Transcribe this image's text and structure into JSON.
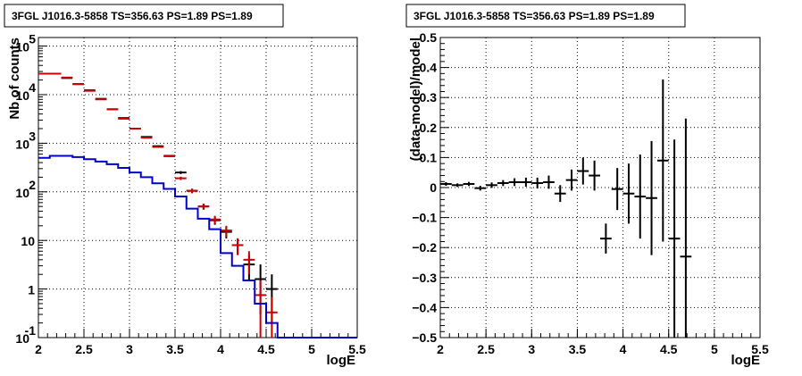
{
  "colors": {
    "data": "#000000",
    "model": "#cc0000",
    "source": "#0000cc",
    "grid": "#000000"
  },
  "chart_data": [
    {
      "type": "line",
      "title": "3FGL J1016.3-5858 TS=356.63 PS=1.89 PS=1.89",
      "xlabel": "logE",
      "ylabel": "Nb of counts",
      "xlim": [
        2,
        5.5
      ],
      "ylim": [
        0.1,
        150000
      ],
      "yscale": "log",
      "grid": true,
      "x_ticks": [
        "2",
        "2.5",
        "3",
        "3.5",
        "4",
        "4.5",
        "5",
        "5.5"
      ],
      "y_ticks": [
        {
          "v": 0.1,
          "base": "10",
          "exp": "-1"
        },
        {
          "v": 1,
          "base": "1",
          "exp": ""
        },
        {
          "v": 10,
          "base": "10",
          "exp": ""
        },
        {
          "v": 100,
          "base": "10",
          "exp": "2"
        },
        {
          "v": 1000,
          "base": "10",
          "exp": "3"
        },
        {
          "v": 10000,
          "base": "10",
          "exp": "4"
        },
        {
          "v": 100000,
          "base": "10",
          "exp": "5"
        }
      ],
      "series": [
        {
          "role": "data",
          "color": "#000000",
          "points": [
            {
              "x": 2.0625,
              "y": 27000
            },
            {
              "x": 2.1875,
              "y": 27000
            },
            {
              "x": 2.3125,
              "y": 22000
            },
            {
              "x": 2.4375,
              "y": 16500
            },
            {
              "x": 2.5625,
              "y": 12300
            },
            {
              "x": 2.6875,
              "y": 8200
            },
            {
              "x": 2.8125,
              "y": 5000
            },
            {
              "x": 2.9375,
              "y": 3300
            },
            {
              "x": 3.0625,
              "y": 2000
            },
            {
              "x": 3.1875,
              "y": 1350
            },
            {
              "x": 3.3125,
              "y": 870
            },
            {
              "x": 3.4375,
              "y": 550
            },
            {
              "x": 3.5625,
              "y": 250
            },
            {
              "x": 3.6875,
              "y": 105
            },
            {
              "x": 3.8125,
              "y": 50
            },
            {
              "x": 3.9375,
              "y": 26
            },
            {
              "x": 4.0625,
              "y": 15
            },
            {
              "x": 4.1875,
              "y": 8
            },
            {
              "x": 4.3125,
              "y": 3.2
            },
            {
              "x": 4.4375,
              "y": 1.6
            },
            {
              "x": 4.5625,
              "y": 1.0
            }
          ],
          "err_low": [
            300,
            300,
            250,
            200,
            150,
            100,
            80,
            60,
            45,
            35,
            30,
            24,
            17,
            11,
            7,
            5,
            4,
            3,
            1.7,
            1.3,
            0.8
          ],
          "err_high": [
            300,
            300,
            250,
            200,
            150,
            100,
            80,
            60,
            45,
            35,
            30,
            24,
            17,
            11,
            7,
            5,
            4,
            3,
            1.8,
            1.6,
            1.0
          ]
        },
        {
          "role": "model",
          "color": "#cc0000",
          "points": [
            {
              "x": 2.0625,
              "y": 27000
            },
            {
              "x": 2.1875,
              "y": 27000
            },
            {
              "x": 2.3125,
              "y": 22500
            },
            {
              "x": 2.4375,
              "y": 16500
            },
            {
              "x": 2.5625,
              "y": 12000
            },
            {
              "x": 2.6875,
              "y": 8000
            },
            {
              "x": 2.8125,
              "y": 5000
            },
            {
              "x": 2.9375,
              "y": 3200
            },
            {
              "x": 3.0625,
              "y": 2000
            },
            {
              "x": 3.1875,
              "y": 1300
            },
            {
              "x": 3.3125,
              "y": 840
            },
            {
              "x": 3.4375,
              "y": 540
            },
            {
              "x": 3.5625,
              "y": 190
            },
            {
              "x": 3.6875,
              "y": 105
            },
            {
              "x": 3.8125,
              "y": 50
            },
            {
              "x": 3.9375,
              "y": 27
            },
            {
              "x": 4.0625,
              "y": 16
            },
            {
              "x": 4.1875,
              "y": 8
            },
            {
              "x": 4.3125,
              "y": 4
            },
            {
              "x": 4.4375,
              "y": 0.75
            },
            {
              "x": 4.5625,
              "y": 0.33
            }
          ],
          "err_low": [
            400,
            400,
            350,
            280,
            200,
            140,
            100,
            70,
            50,
            40,
            32,
            25,
            15,
            11,
            7,
            5,
            4,
            3,
            2,
            0.65,
            0.23
          ],
          "err_high": [
            400,
            400,
            350,
            280,
            200,
            140,
            100,
            70,
            50,
            40,
            32,
            25,
            15,
            11,
            7,
            5,
            4,
            3,
            2,
            0.75,
            0.35
          ]
        },
        {
          "role": "source",
          "color": "#0000cc",
          "drawstyle": "steps",
          "bin_width": 0.125,
          "x_centers": [
            2.0625,
            2.1875,
            2.3125,
            2.4375,
            2.5625,
            2.6875,
            2.8125,
            2.9375,
            3.0625,
            3.1875,
            3.3125,
            3.4375,
            3.5625,
            3.6875,
            3.8125,
            3.9375,
            4.0625,
            4.1875,
            4.3125,
            4.4375,
            4.5625,
            4.6875,
            4.8125,
            4.9375,
            5.0625,
            5.1875,
            5.3125,
            5.4375
          ],
          "values": [
            500,
            550,
            550,
            520,
            470,
            420,
            370,
            310,
            250,
            200,
            150,
            115,
            80,
            45,
            28,
            17,
            5.5,
            3.0,
            1.5,
            0.5,
            0.2,
            0.1,
            0.1,
            0.1,
            0.1,
            0.1,
            0.1,
            0.1
          ]
        }
      ]
    },
    {
      "type": "scatter",
      "title": "3FGL J1016.3-5858 TS=356.63 PS=1.89 PS=1.89",
      "xlabel": "logE",
      "ylabel": "(data-model)/model",
      "xlim": [
        2,
        5.5
      ],
      "ylim": [
        -0.5,
        0.5
      ],
      "grid": true,
      "x_ticks": [
        "2",
        "2.5",
        "3",
        "3.5",
        "4",
        "4.5",
        "5",
        "5.5"
      ],
      "y_ticks": [
        "0.5",
        "0.4",
        "0.3",
        "0.2",
        "0.1",
        "0",
        "−0.1",
        "−0.2",
        "−0.3",
        "−0.4",
        "−0.5"
      ],
      "series": [
        {
          "role": "residual",
          "color": "#000000",
          "points": [
            {
              "x": 2.0625,
              "y": 0.012,
              "err": 0.006
            },
            {
              "x": 2.1875,
              "y": 0.008,
              "err": 0.006
            },
            {
              "x": 2.3125,
              "y": 0.012,
              "err": 0.007
            },
            {
              "x": 2.4375,
              "y": -0.002,
              "err": 0.008
            },
            {
              "x": 2.5625,
              "y": 0.008,
              "err": 0.009
            },
            {
              "x": 2.6875,
              "y": 0.015,
              "err": 0.01
            },
            {
              "x": 2.8125,
              "y": 0.018,
              "err": 0.013
            },
            {
              "x": 2.9375,
              "y": 0.018,
              "err": 0.015
            },
            {
              "x": 3.0625,
              "y": 0.015,
              "err": 0.018
            },
            {
              "x": 3.1875,
              "y": 0.018,
              "err": 0.022
            },
            {
              "x": 3.3125,
              "y": -0.02,
              "err": 0.028
            },
            {
              "x": 3.4375,
              "y": 0.025,
              "err": 0.035
            },
            {
              "x": 3.5625,
              "y": 0.055,
              "err": 0.045
            },
            {
              "x": 3.6875,
              "y": 0.04,
              "err": 0.05
            },
            {
              "x": 3.8125,
              "y": -0.17,
              "err": 0.05
            },
            {
              "x": 3.9375,
              "y": -0.005,
              "err": 0.07
            },
            {
              "x": 4.0625,
              "y": -0.02,
              "err": 0.1
            },
            {
              "x": 4.1875,
              "y": -0.03,
              "err": 0.14
            },
            {
              "x": 4.3125,
              "y": -0.035,
              "err": 0.19
            },
            {
              "x": 4.4375,
              "y": 0.09,
              "err": 0.27
            },
            {
              "x": 4.5625,
              "y": -0.17,
              "err": 0.33
            },
            {
              "x": 4.6875,
              "y": -0.23,
              "err": 0.46
            }
          ]
        }
      ]
    }
  ]
}
